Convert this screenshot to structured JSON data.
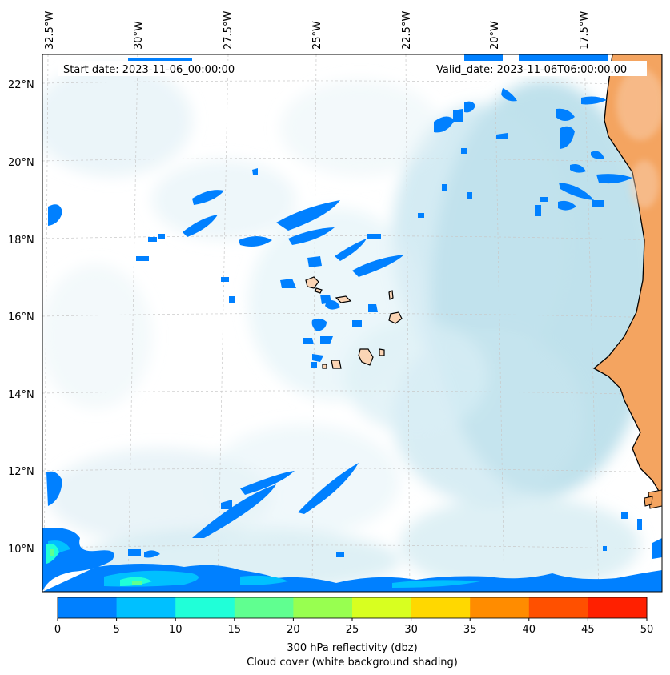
{
  "map": {
    "start_date": "Start date: 2023-11-06_00:00:00",
    "valid_date": "Valid_date: 2023-11-06T06:00:00.00",
    "lon_labels": [
      "32.5°W",
      "30°W",
      "27.5°W",
      "25°W",
      "22.5°W",
      "20°W",
      "17.5°W"
    ],
    "lat_labels": [
      "22°N",
      "20°N",
      "18°N",
      "16°N",
      "14°N",
      "12°N",
      "10°N"
    ],
    "colors": {
      "ocean": "#ffffff",
      "cloud_shading": "#a8d8e8",
      "land": "#f4a460",
      "coast": "#000000",
      "reflectivity_low": "#0080ff"
    }
  },
  "colorbar": {
    "ticks": [
      "0",
      "5",
      "10",
      "15",
      "20",
      "25",
      "30",
      "35",
      "40",
      "45",
      "50"
    ],
    "colors": [
      "#0080ff",
      "#00c0ff",
      "#20ffd8",
      "#60ff90",
      "#98ff50",
      "#d8ff20",
      "#ffd800",
      "#ff8c00",
      "#ff5000",
      "#ff2000"
    ],
    "label_line1": "300 hPa reflectivity (dbz)",
    "label_line2": "Cloud cover (white background shading)"
  }
}
